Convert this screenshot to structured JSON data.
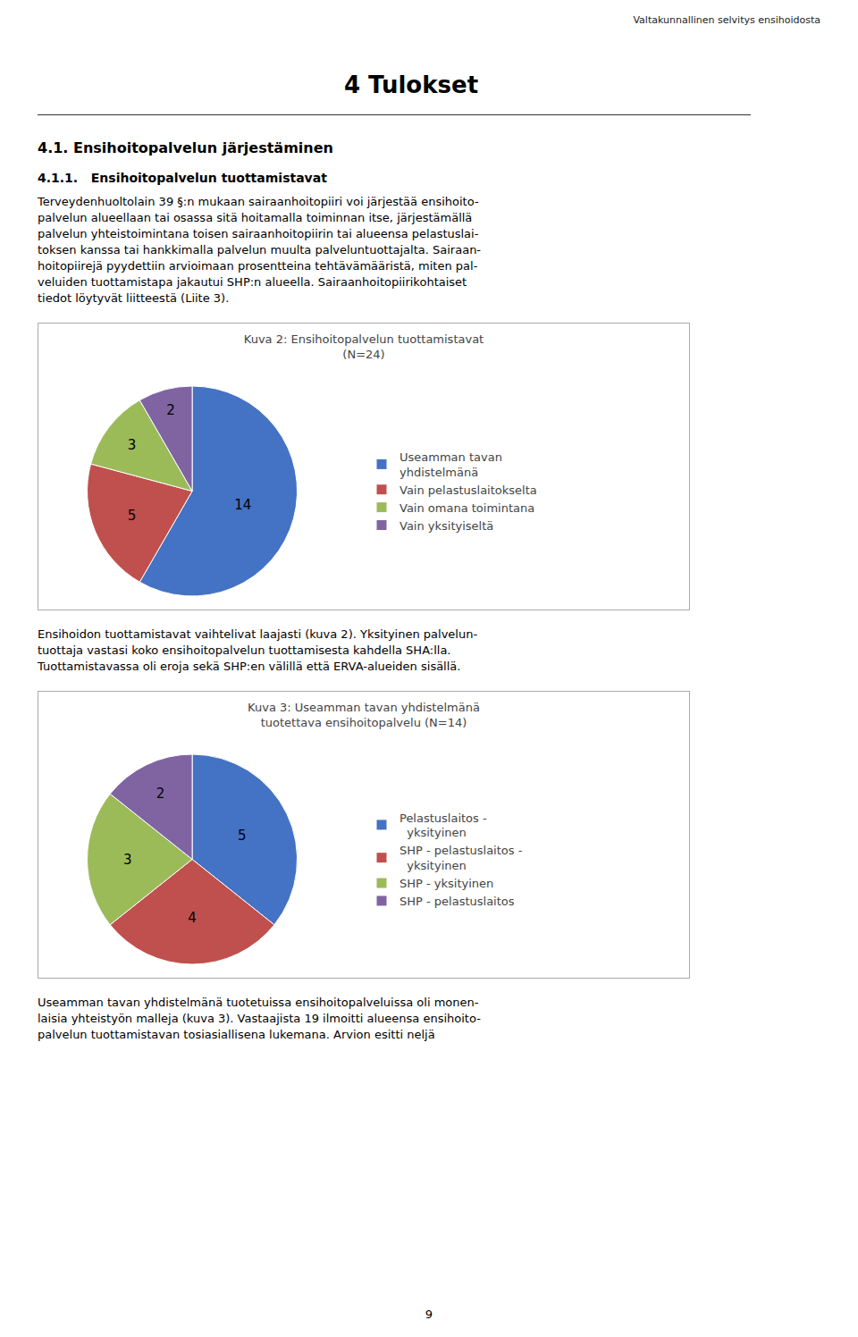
{
  "header_text": "Valtakunnallinen selvitys ensihoidosta",
  "chapter_title": "4 Tulokset",
  "section_title": "4.1. Ensihoitopalvelun järjestäminen",
  "subsection_title": "4.1.1.   Ensihoitopalvelun tuottamistavat",
  "body1_lines": [
    "Terveydenhuoltolain 39 §:n mukaan sairaanhoitopiiri voi järjestää ensihoito-",
    "palvelun alueellaan tai osassa sitä hoitamalla toiminnan itse, järjestämällä",
    "palvelun yhteistoimintana toisen sairaanhoitopiirin tai alueensa pelastuslai-",
    "toksen kanssa tai hankkimalla palvelun muulta palveluntuottajalta. Sairaan-",
    "hoitopiirejä pyydettiin arvioimaan prosentteina tehtävämääristä, miten pal-",
    "veluiden tuottamistapa jakautui SHP:n alueella. Sairaanhoitopiirikohtaiset",
    "tiedot löytyvät liitteestä (Liite 3)."
  ],
  "body2_lines": [
    "Ensihoidon tuottamistavat vaihtelivat laajasti (kuva 2). Yksityinen palvelun-",
    "tuottaja vastasi koko ensihoitopalvelun tuottamisesta kahdella SHA:lla.",
    "Tuottamistavassa oli eroja sekä SHP:en välillä että ERVA-alueiden sisällä."
  ],
  "body3_lines": [
    "Useamman tavan yhdistelmänä tuotetuissa ensihoitopalveluissa oli monen-",
    "laisia yhteistyön malleja (kuva 3). Vastaajista 19 ilmoitti alueensa ensihoito-",
    "palvelun tuottamistavan tosiasiallisena lukemana. Arvion esitti neljä"
  ],
  "page_number": "9",
  "chart_data": [
    {
      "type": "pie",
      "title": "Kuva 2: Ensihoitopalvelun tuottamistavat",
      "subtitle": "(N=24)",
      "categories": [
        "Useamman tavan\nyhdistelmänä",
        "Vain pelastuslaitokselta",
        "Vain omana toimintana",
        "Vain yksityiseltä"
      ],
      "values": [
        14,
        5,
        3,
        2
      ],
      "colors": [
        "#4472C4",
        "#C0504D",
        "#9BBB59",
        "#8064A2"
      ],
      "data_labels": true,
      "legend": "right"
    },
    {
      "type": "pie",
      "title": "Kuva 3: Useamman tavan yhdistelmänä",
      "subtitle": "tuotettava ensihoitopalvelu (N=14)",
      "categories": [
        "Pelastuslaitos -\n  yksityinen",
        "SHP - pelastuslaitos -\n  yksityinen",
        "SHP - yksityinen",
        "SHP - pelastuslaitos"
      ],
      "values": [
        5,
        4,
        3,
        2
      ],
      "colors": [
        "#4472C4",
        "#C0504D",
        "#9BBB59",
        "#8064A2"
      ],
      "data_labels": true,
      "legend": "right"
    }
  ]
}
